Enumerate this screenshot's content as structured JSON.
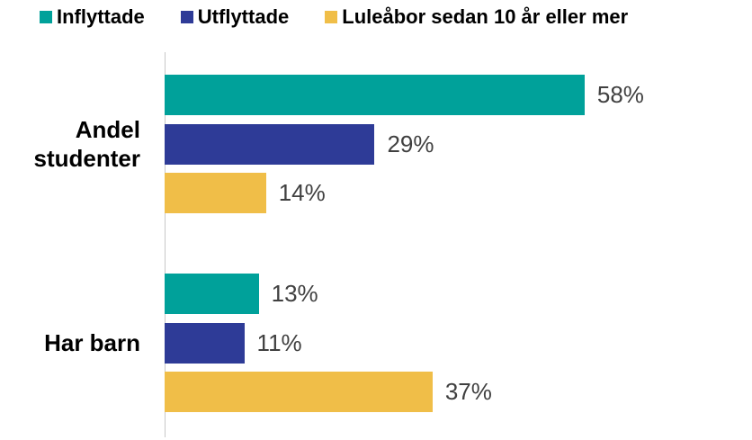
{
  "chart_data": {
    "type": "bar",
    "orientation": "horizontal",
    "categories": [
      "Andel studenter",
      "Har barn"
    ],
    "series": [
      {
        "name": "Inflyttade",
        "color": "#00a19a",
        "values": [
          58,
          13
        ],
        "value_labels": [
          "58%",
          "13%"
        ]
      },
      {
        "name": "Utflyttade",
        "color": "#2e3b97",
        "values": [
          29,
          11
        ],
        "value_labels": [
          "29%",
          "11%"
        ]
      },
      {
        "name": "Luleåbor sedan 10 år eller mer",
        "color": "#f0be48",
        "values": [
          14,
          37
        ],
        "value_labels": [
          "14%",
          "37%"
        ]
      }
    ],
    "xlim": [
      0,
      80
    ],
    "legend": "top"
  }
}
